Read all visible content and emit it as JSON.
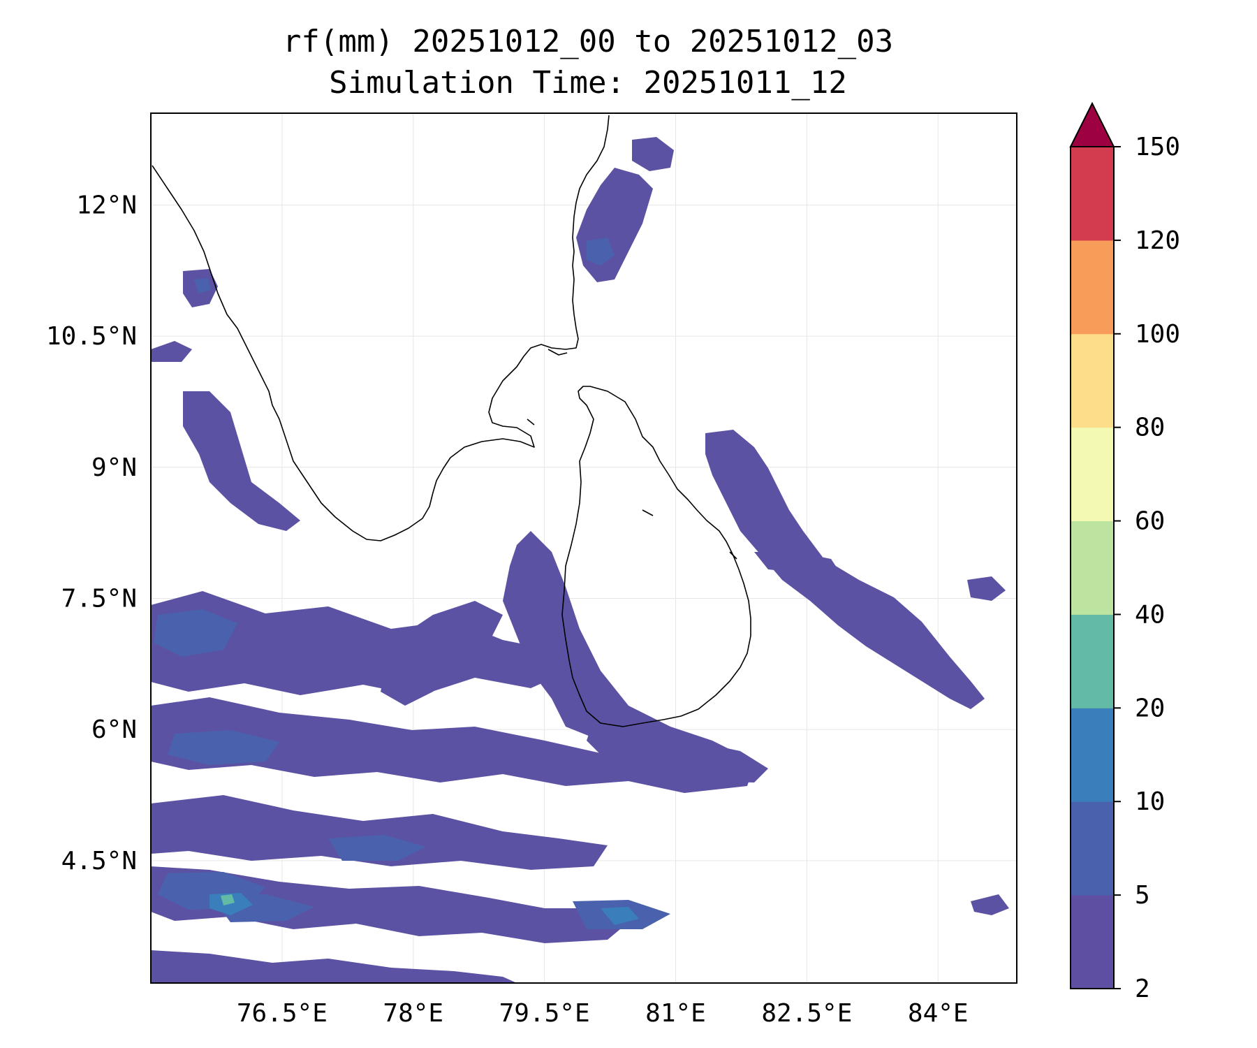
{
  "title": {
    "line1": "rf(mm) 20251012_00 to 20251012_03",
    "line2": "Simulation Time: 20251011_12"
  },
  "map": {
    "variable": "rf",
    "units": "mm",
    "lon_range": [
      75.0,
      84.9
    ],
    "lat_range": [
      3.1,
      13.05
    ],
    "lon_ticks": [
      {
        "value": 76.5,
        "label": "76.5°E"
      },
      {
        "value": 78.0,
        "label": "78°E"
      },
      {
        "value": 79.5,
        "label": "79.5°E"
      },
      {
        "value": 81.0,
        "label": "81°E"
      },
      {
        "value": 82.5,
        "label": "82.5°E"
      },
      {
        "value": 84.0,
        "label": "84°E"
      }
    ],
    "lat_ticks": [
      {
        "value": 12.0,
        "label": "12°N"
      },
      {
        "value": 10.5,
        "label": "10.5°N"
      },
      {
        "value": 9.0,
        "label": "9°N"
      },
      {
        "value": 7.5,
        "label": "7.5°N"
      },
      {
        "value": 6.0,
        "label": "6°N"
      },
      {
        "value": 4.5,
        "label": "4.5°N"
      }
    ],
    "gridlines": true
  },
  "colorbar": {
    "levels": [
      "2",
      "5",
      "10",
      "20",
      "40",
      "60",
      "80",
      "100",
      "120",
      "150"
    ],
    "colors": [
      "#5e4fa2",
      "#4a62ad",
      "#3a7fbb",
      "#63bba6",
      "#bce3a0",
      "#f3f9b2",
      "#fcde8a",
      "#f89c5a",
      "#d33c4e"
    ],
    "extend_color": "#9e0142",
    "extend": "max"
  },
  "colors": {
    "rain_light": "#5b52a3",
    "rain_moderate": "#4a62ad",
    "rain_heavy": "#3a7fbb",
    "rain_peak": "#63bba6",
    "coastline": "#000000",
    "grid": "#e6e6e6"
  }
}
